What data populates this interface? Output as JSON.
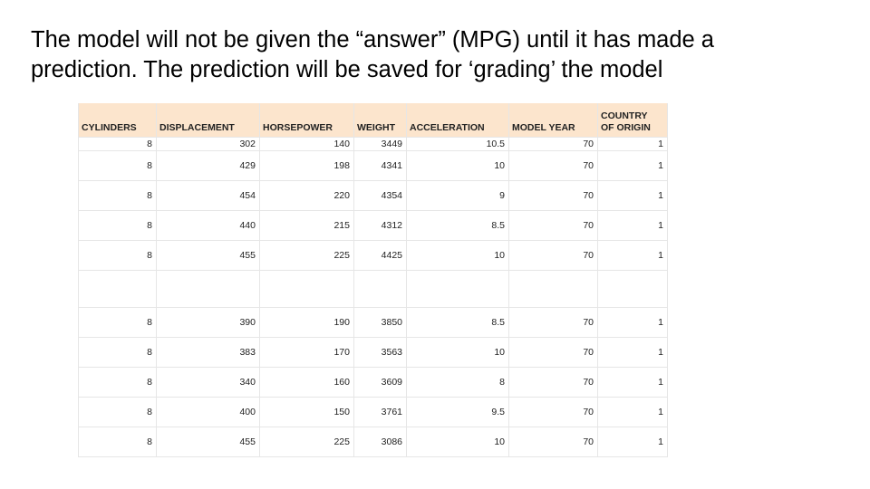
{
  "title": {
    "line1": "The model will not be given the “answer” (MPG) until it has made a",
    "line2": "prediction. The prediction will be saved for ‘grading’ the model"
  },
  "table": {
    "headers": [
      "CYLINDERS",
      "DISPLACEMENT",
      "HORSEPOWER",
      "WEIGHT",
      "ACCELERATION",
      "MODEL YEAR",
      "COUNTRY OF ORIGIN"
    ],
    "header_lines": [
      [
        "CYLINDERS"
      ],
      [
        "DISPLACEMENT"
      ],
      [
        "HORSEPOWER"
      ],
      [
        "WEIGHT"
      ],
      [
        "ACCELERATION"
      ],
      [
        "MODEL YEAR"
      ],
      [
        "COUNTRY",
        "OF ORIGIN"
      ]
    ],
    "rows": [
      [
        "8",
        "302",
        "140",
        "3449",
        "10.5",
        "70",
        "1"
      ],
      [
        "8",
        "429",
        "198",
        "4341",
        "10",
        "70",
        "1"
      ],
      [
        "8",
        "454",
        "220",
        "4354",
        "9",
        "70",
        "1"
      ],
      [
        "8",
        "440",
        "215",
        "4312",
        "8.5",
        "70",
        "1"
      ],
      [
        "8",
        "455",
        "225",
        "4425",
        "10",
        "70",
        "1"
      ],
      [
        "",
        "",
        "",
        "",
        "",
        "",
        ""
      ],
      [
        "8",
        "390",
        "190",
        "3850",
        "8.5",
        "70",
        "1"
      ],
      [
        "8",
        "383",
        "170",
        "3563",
        "10",
        "70",
        "1"
      ],
      [
        "8",
        "340",
        "160",
        "3609",
        "8",
        "70",
        "1"
      ],
      [
        "8",
        "400",
        "150",
        "3761",
        "9.5",
        "70",
        "1"
      ],
      [
        "8",
        "455",
        "225",
        "3086",
        "10",
        "70",
        "1"
      ]
    ],
    "header_bg": "#fce5cd"
  }
}
